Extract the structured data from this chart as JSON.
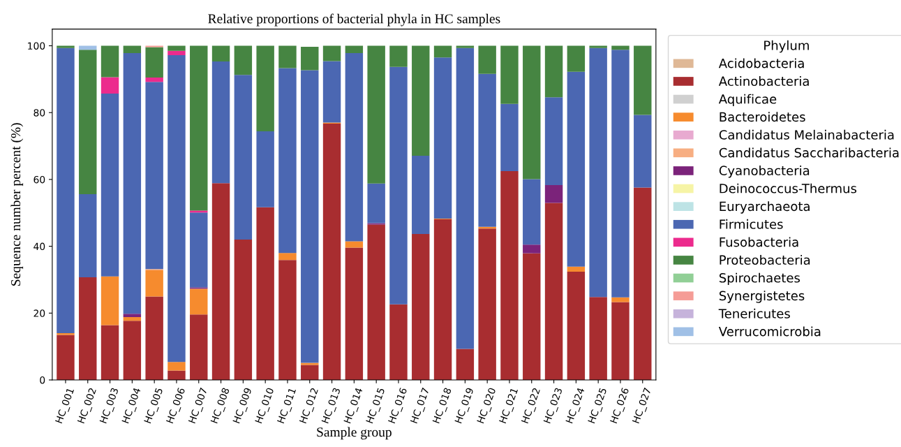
{
  "chart_data": {
    "type": "bar",
    "stacked": true,
    "title": "Relative proportions of bacterial phyla in HC samples",
    "xlabel": "Sample group",
    "ylabel": "Sequence number percent (%)",
    "legend_title": "Phylum",
    "legend": "top right",
    "grid": false,
    "categories": [
      "HC_001",
      "HC_002",
      "HC_003",
      "HC_004",
      "HC_005",
      "HC_006",
      "HC_007",
      "HC_008",
      "HC_009",
      "HC_010",
      "HC_011",
      "HC_012",
      "HC_013",
      "HC_014",
      "HC_015",
      "HC_016",
      "HC_017",
      "HC_018",
      "HC_019",
      "HC_020",
      "HC_021",
      "HC_022",
      "HC_023",
      "HC_024",
      "HC_025",
      "HC_026",
      "HC_027"
    ],
    "ylim": [
      0,
      105
    ],
    "yticks": [
      0,
      20,
      40,
      60,
      80,
      100
    ],
    "series": [
      {
        "name": "Acidobacteria",
        "color": "#dfb896",
        "values": [
          0,
          0,
          0,
          0,
          0,
          0,
          0,
          0,
          0,
          0,
          0,
          null,
          0,
          0,
          0,
          0,
          0,
          0,
          0,
          0,
          0,
          0,
          0,
          0,
          0,
          0,
          0
        ]
      },
      {
        "name": "Actinobacteria",
        "color": "#a82d30",
        "values": [
          13.5,
          30.7,
          16.4,
          17.7,
          25,
          2.8,
          19.6,
          58.9,
          42.0,
          51.7,
          35.9,
          4.5,
          76.7,
          39.6,
          46.5,
          22.6,
          43.7,
          48.1,
          9.3,
          45.3,
          62.5,
          37.9,
          53.0,
          32.4,
          24.8,
          23.3,
          57.6
        ]
      },
      {
        "name": "Aquificae",
        "color": "#d0d0d0",
        "values": [
          0,
          0,
          0,
          0,
          0,
          0,
          0,
          0,
          0,
          0,
          0,
          0,
          0,
          0,
          0,
          0,
          0,
          0,
          0,
          0,
          0,
          0,
          0,
          0,
          0,
          0,
          0
        ]
      },
      {
        "name": "Bacteroidetes",
        "color": "#f68b2e",
        "values": [
          0.5,
          0,
          14.6,
          1.1,
          7.8,
          2.6,
          7.7,
          0,
          0,
          0,
          2.1,
          0.6,
          0.3,
          1.9,
          0,
          0,
          0,
          0.2,
          0,
          0.5,
          0,
          0,
          0,
          1.5,
          0,
          1.4,
          0
        ]
      },
      {
        "name": "Candidatus Melainabacteria",
        "color": "#e8aad0",
        "values": [
          0,
          0,
          0,
          0,
          0,
          0,
          0,
          0,
          0,
          0,
          0,
          0,
          0,
          0,
          0,
          0,
          0,
          0,
          0,
          0,
          0,
          0,
          0,
          0,
          0,
          0,
          0
        ]
      },
      {
        "name": "Candidatus Saccharibacteria",
        "color": "#f7ae82",
        "values": [
          0,
          0,
          0,
          0,
          0.4,
          0,
          0,
          0,
          0,
          0,
          0,
          0,
          0,
          0,
          0,
          0,
          0,
          0,
          0,
          0,
          0,
          0,
          0,
          0,
          0,
          0,
          0
        ]
      },
      {
        "name": "Cyanobacteria",
        "color": "#7b237a",
        "values": [
          0,
          0,
          0,
          1.0,
          0,
          0,
          0.4,
          0,
          0,
          0,
          0,
          0,
          0,
          0,
          0.4,
          0,
          0,
          0,
          0,
          0,
          0,
          2.6,
          5.3,
          0,
          0,
          0,
          0
        ]
      },
      {
        "name": "Deinococcus-Thermus",
        "color": "#f6f4a6",
        "values": [
          0,
          0,
          0,
          0,
          0,
          0,
          0,
          0,
          0,
          0,
          0,
          0,
          0,
          0,
          0,
          0,
          0,
          0,
          0,
          0,
          0,
          0,
          0,
          0,
          0,
          0,
          0
        ]
      },
      {
        "name": "Euryarchaeota",
        "color": "#bde3e5",
        "values": [
          0,
          0,
          0,
          0,
          0,
          0,
          0,
          0,
          0,
          0,
          0,
          0,
          0,
          0,
          0,
          0,
          0,
          0,
          0,
          0,
          0,
          0,
          0,
          0,
          0,
          0,
          0
        ]
      },
      {
        "name": "Firmicutes",
        "color": "#4b67b2",
        "values": [
          85.3,
          24.9,
          54.7,
          78.0,
          56.0,
          91.8,
          22.4,
          36.4,
          49.3,
          22.7,
          55.3,
          87.6,
          18.4,
          56.3,
          11.9,
          71.1,
          23.4,
          48.2,
          90.0,
          45.8,
          20.1,
          19.6,
          26.3,
          58.3,
          74.5,
          74.1,
          21.7
        ]
      },
      {
        "name": "Fusobacteria",
        "color": "#ec2b8d",
        "values": [
          0,
          0,
          4.9,
          0,
          1.3,
          1.3,
          0.6,
          0,
          0,
          0,
          0,
          0,
          0,
          0,
          0,
          0,
          0,
          0,
          0,
          0,
          0,
          0,
          0,
          0,
          0,
          0,
          0
        ]
      },
      {
        "name": "Proteobacteria",
        "color": "#468542",
        "values": [
          0.7,
          43.2,
          9.4,
          2.2,
          9.1,
          1.5,
          49.3,
          4.7,
          8.7,
          25.6,
          6.7,
          7.0,
          4.6,
          2.2,
          41.2,
          6.3,
          32.9,
          3.5,
          0.7,
          8.4,
          17.4,
          39.9,
          15.4,
          7.8,
          0.7,
          1.2,
          20.7
        ]
      },
      {
        "name": "Spirochaetes",
        "color": "#91cf96",
        "values": [
          0,
          0,
          0,
          0,
          0,
          0,
          0,
          0,
          0,
          0,
          0,
          0,
          0,
          0,
          0,
          0,
          0,
          0,
          0,
          0,
          0,
          0,
          0,
          0,
          0,
          0,
          0
        ]
      },
      {
        "name": "Synergistetes",
        "color": "#f59c96",
        "values": [
          0,
          0,
          0,
          0,
          0.4,
          0,
          0,
          0,
          0,
          0,
          0,
          0,
          0,
          0,
          0,
          0,
          0,
          0,
          0,
          0,
          0,
          0,
          0,
          0,
          0,
          0,
          0
        ]
      },
      {
        "name": "Tenericutes",
        "color": "#c6b3db",
        "values": [
          0,
          0,
          0,
          0,
          0,
          0,
          0,
          0,
          0,
          0,
          0,
          0,
          0,
          0,
          0,
          0,
          0,
          0,
          0,
          0,
          0,
          0,
          0,
          0,
          0,
          0,
          0
        ]
      },
      {
        "name": "Verrucomicrobia",
        "color": "#a0c0e6",
        "values": [
          0,
          1.2,
          0,
          0,
          0,
          0,
          0,
          0,
          0,
          0,
          0,
          0,
          0,
          0,
          0,
          0,
          0,
          0,
          0,
          0,
          0,
          0,
          0,
          0,
          0,
          0,
          0
        ]
      }
    ]
  }
}
